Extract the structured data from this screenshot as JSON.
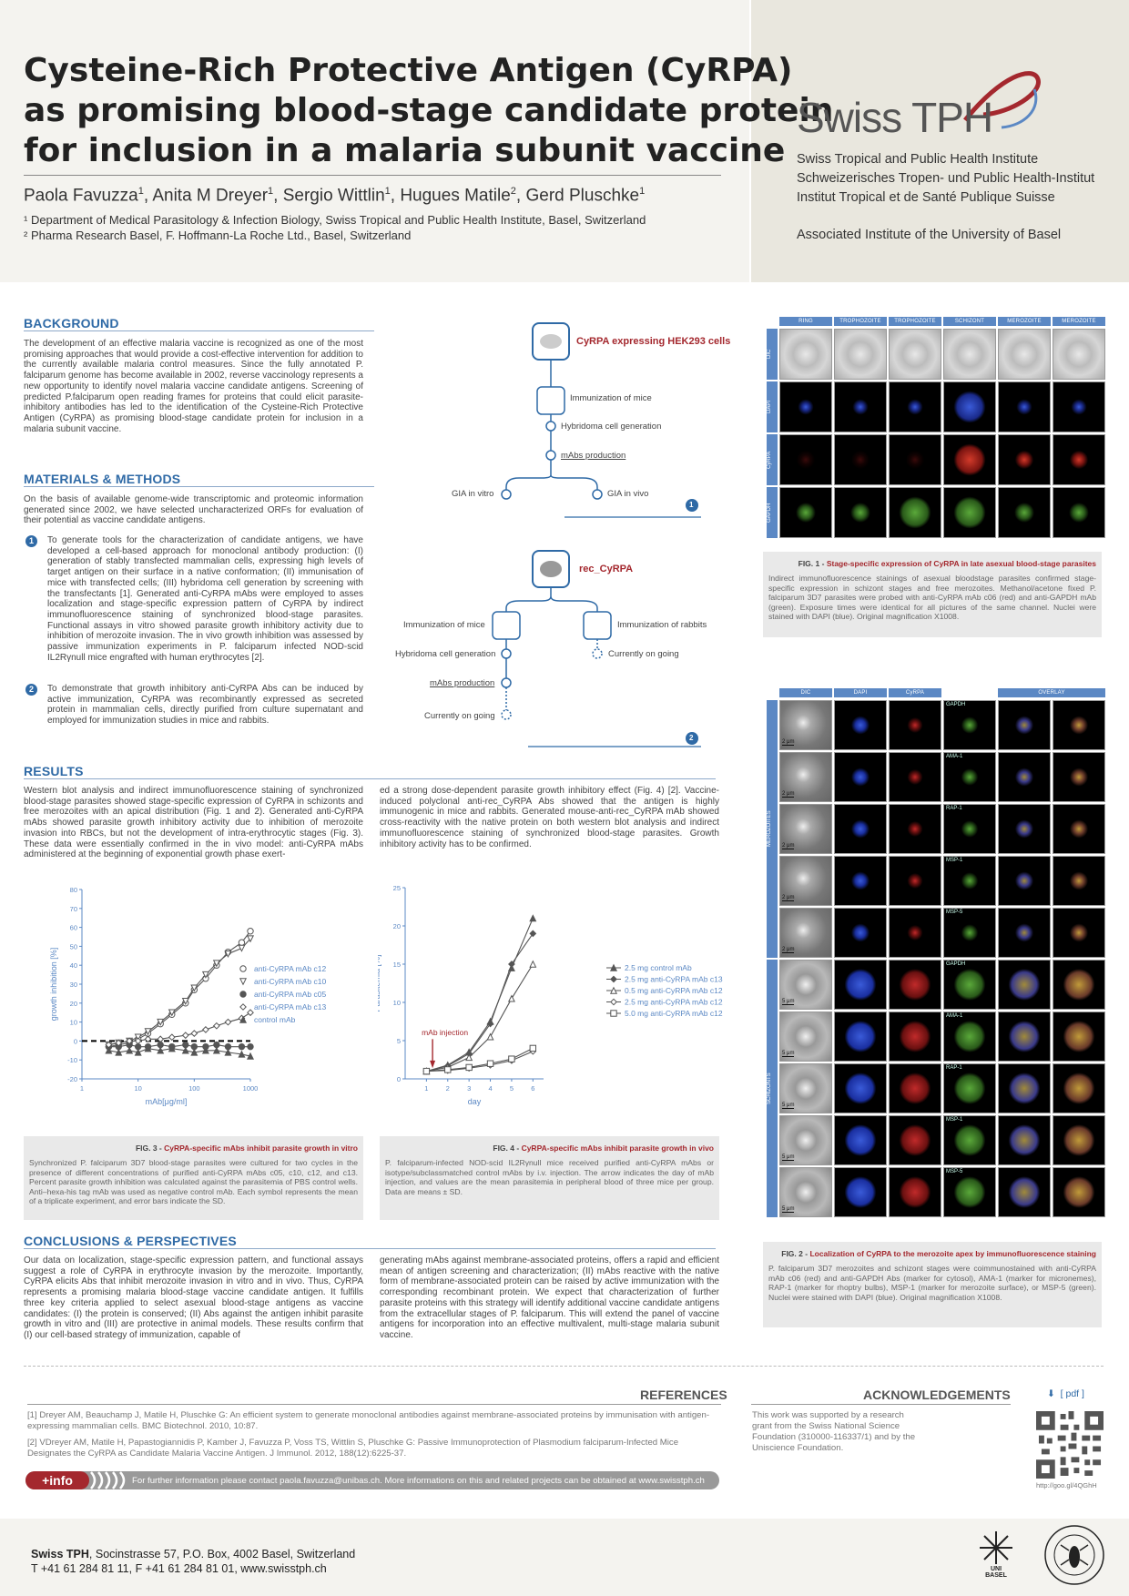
{
  "header": {
    "title_lines": [
      "Cysteine-Rich Protective Antigen (CyRPA)",
      "as promising blood-stage candidate protein",
      "for inclusion in a malaria subunit vaccine"
    ],
    "authors": [
      {
        "name": "Paola Favuzza",
        "aff": "1"
      },
      {
        "name": "Anita M Dreyer",
        "aff": "1"
      },
      {
        "name": "Sergio Wittlin",
        "aff": "1"
      },
      {
        "name": "Hugues Matile",
        "aff": "2"
      },
      {
        "name": "Gerd Pluschke",
        "aff": "1"
      }
    ],
    "affiliations": [
      "¹ Department of Medical Parasitology & Infection Biology, Swiss Tropical and Public Health Institute, Basel, Switzerland",
      "² Pharma Research Basel, F. Hoffmann-La Roche Ltd., Basel, Switzerland"
    ]
  },
  "logo": {
    "name": "Swiss TPH",
    "institute_lines": [
      "Swiss Tropical and Public Health Institute",
      "Schweizerisches Tropen- und Public Health-Institut",
      "Institut Tropical et de Santé Publique Suisse"
    ],
    "associated": "Associated Institute of the University of Basel"
  },
  "background": {
    "heading": "BACKGROUND",
    "text": "The development of an effective malaria vaccine is recognized as one of the most promising approaches that would provide a cost-effective intervention for addition to the currently available malaria control measures. Since the fully annotated P. falciparum genome has become available in 2002, reverse vaccinology represents a new opportunity to identify novel malaria vaccine candidate antigens. Screening of predicted P.falciparum open reading frames for proteins that could elicit parasite-inhibitory antibodies has led to the identification of the Cysteine-Rich Protective Antigen (CyRPA) as promising blood-stage candidate protein for inclusion in a malaria subunit vaccine."
  },
  "methods": {
    "heading": "MATERIALS & METHODS",
    "intro": "On the basis of available genome-wide transcriptomic and proteomic information generated since 2002, we have selected uncharacterized ORFs for evaluation of their potential as vaccine candidate antigens.",
    "item1": "To generate tools for the characterization of candidate antigens, we have developed a cell-based approach for monoclonal antibody production: (I) generation of stably transfected mammalian cells, expressing high levels of target antigen on their surface in a native conformation; (II) immunisation of mice with transfected cells; (III) hybridoma cell generation by screening with the transfectants [1]. Generated anti-CyRPA mAbs were employed to asses localization and stage-specific expression pattern of CyRPA by indirect immunofluorescence staining of synchronized blood-stage parasites. Functional assays in vitro showed parasite growth inhibitory activity due to inhibition of merozoite invasion. The in vivo growth inhibition was assessed by passive immunization experiments in P. falciparum infected NOD-scid IL2Rγnull mice engrafted with human erythrocytes [2].",
    "item2": "To demonstrate that growth inhibitory anti-CyRPA Abs can be induced by active immunization, CyRPA was recombinantly expressed as secreted protein in mammalian cells, directly purified from culture supernatant and employed for immunization studies in mice and rabbits.",
    "n1": "1",
    "n2": "2"
  },
  "flow1": {
    "title": "CyRPA expressing HEK293 cells",
    "steps": [
      "Immunization of mice",
      "Hybridoma cell generation",
      "mAbs production"
    ],
    "left": "GIA in vitro",
    "right": "GIA in vivo",
    "badge": "1"
  },
  "flow2": {
    "title": "rec_CyRPA",
    "left_steps": [
      "Immunization of mice",
      "Hybridoma cell generation",
      "mAbs production",
      "Currently on going"
    ],
    "right_steps": [
      "Immunization of rabbits",
      "Currently on going"
    ],
    "badge": "2"
  },
  "fig1": {
    "columns": [
      "RING",
      "TROPHOZOITE",
      "TROPHOZOITE",
      "SCHIZONT",
      "MEROZOITE",
      "MEROZOITE"
    ],
    "rows": [
      "DIC",
      "DAPI",
      "CyRPA",
      "GAPDH"
    ],
    "caption_label": "FIG. 1 -",
    "caption_title": "Stage-specific expression of CyRPA in late asexual blood-stage parasites",
    "caption": "Indirect immunofluorescence stainings of asexual bloodstage parasites confirmed stage-specific expression in schizont stages and free merozoites. Methanol/acetone fixed P. falciparum 3D7 parasites were probed with anti-CyRPA mAb c06 (red) and anti-GAPDH mAb (green). Exposure times were identical for all pictures of the same channel. Nuclei were stained with DAPI (blue). Original magnification X1008."
  },
  "fig2": {
    "columns": [
      "DIC",
      "DAPI",
      "CyRPA",
      "",
      "OVERLAY"
    ],
    "merozoite_label": "MEROZOITES",
    "schizont_label": "SCHIZONTS",
    "markers": [
      "GAPDH",
      "AMA-1",
      "RAP-1",
      "MSP-1",
      "MSP-5",
      "GAPDH",
      "AMA-1",
      "RAP-1",
      "MSP-1",
      "MSP-5"
    ],
    "scale": [
      "2 μm",
      "2 μm",
      "2 μm",
      "2 μm",
      "2 μm",
      "5 μm",
      "5 μm",
      "5 μm",
      "5 μm",
      "5 μm"
    ],
    "caption_label": "FIG. 2 -",
    "caption_title": "Localization of CyRPA to the merozoite apex by immunofluorescence staining",
    "caption": "P. falciparum 3D7 merozoites and schizont stages were coimmunostained with anti-CyRPA mAb c06 (red) and anti-GAPDH Abs (marker for cytosol), AMA-1 (marker for micronemes), RAP-1 (marker for rhoptry bulbs), MSP-1 (marker for merozoite surface), or MSP-5 (green). Nuclei were stained with DAPI (blue). Original magnification X1008."
  },
  "results": {
    "heading": "RESULTS",
    "col1": "Western blot analysis and indirect immunofluorescence staining of synchronized blood-stage parasites showed stage-specific expression of CyRPA in schizonts and free merozoites with an apical distribution (Fig. 1 and 2). Generated anti-CyRPA mAbs showed parasite growth inhibitory activity due to inhibition of merozoite invasion into RBCs, but not the development of intra-erythrocytic stages (Fig. 3). These data were essentially confirmed in the in vivo model: anti-CyRPA mAbs administered at the beginning of exponential growth phase exert-",
    "col2": "ed a strong dose-dependent parasite growth inhibitory effect (Fig. 4) [2]. Vaccine-induced polyclonal anti-rec_CyRPA Abs showed that the antigen is highly immunogenic in mice and rabbits. Generated mouse-anti-rec_CyRPA mAb showed cross-reactivity with the native protein on both western blot analysis and indirect immunofluorescence staining of synchronized blood-stage parasites. Growth inhibitory activity has to be confirmed."
  },
  "fig3": {
    "caption_label": "FIG. 3 -",
    "caption_title": "CyRPA-specific mAbs inhibit parasite growth in vitro",
    "caption": "Synchronized P. falciparum 3D7 blood-stage parasites were cultured for two cycles in the presence of different concentrations of purified anti-CyRPA mAbs c05, c10, c12, and c13. Percent parasite growth inhibition was calculated against the parasitemia of PBS control wells. Anti–hexa-his tag mAb was used as negative control mAb. Each symbol represents the mean of a triplicate experiment, and error bars indicate the SD."
  },
  "fig4": {
    "caption_label": "FIG. 4 -",
    "caption_title": "CyRPA-specific mAbs inhibit parasite growth in vivo",
    "caption": "P. falciparum-infected NOD-scid IL2Rγnull mice received purified anti-CyRPA mAbs or isotype/subclassmatched control mAbs by i.v. injection. The arrow indicates the day of mAb injection, and values are the mean parasitemia in peripheral blood of three mice per group. Data are means ± SD."
  },
  "chart_data": [
    {
      "type": "line",
      "xlabel": "mAb[μg/ml]",
      "ylabel": "growth inhibition [%]",
      "xscale": "log",
      "xlim": [
        1,
        1000
      ],
      "ylim": [
        -20,
        80
      ],
      "xticks": [
        1,
        10,
        100,
        1000
      ],
      "yticks": [
        -20,
        -10,
        0,
        10,
        20,
        30,
        40,
        50,
        60,
        70,
        80
      ],
      "x": [
        3,
        4.5,
        7,
        10,
        15,
        25,
        40,
        70,
        100,
        160,
        250,
        400,
        700,
        1000
      ],
      "series": [
        {
          "name": "anti-CyRPA mAb c12",
          "marker": "open-circle",
          "values": [
            -3,
            -2,
            -1,
            1,
            4,
            9,
            14,
            20,
            27,
            33,
            40,
            47,
            52,
            58
          ]
        },
        {
          "name": "anti-CyRPA mAb c10",
          "marker": "open-triangle-down",
          "values": [
            -2,
            -1,
            0,
            2,
            5,
            10,
            15,
            21,
            28,
            35,
            41,
            46,
            49,
            54
          ]
        },
        {
          "name": "anti-CyRPA mAb c05",
          "marker": "filled-circle",
          "values": [
            -3,
            -3,
            -2,
            -3,
            -3,
            -2,
            -3,
            -2,
            -3,
            -3,
            -2,
            -3,
            -3,
            -3
          ]
        },
        {
          "name": "anti-CyRPA mAb c13",
          "marker": "open-diamond",
          "values": [
            -2,
            -1,
            0,
            0,
            1,
            1,
            2,
            3,
            4,
            6,
            8,
            10,
            12,
            15
          ]
        },
        {
          "name": "control mAb",
          "marker": "filled-triangle",
          "values": [
            -5,
            -6,
            -5,
            -6,
            -4,
            -5,
            -4,
            -5,
            -6,
            -5,
            -5,
            -6,
            -7,
            -8
          ]
        }
      ]
    },
    {
      "type": "line",
      "xlabel": "day",
      "ylabel": "Parasitemia [%]",
      "xlim": [
        0,
        6.5
      ],
      "ylim": [
        0,
        25
      ],
      "xticks": [
        1,
        2,
        3,
        4,
        5,
        6
      ],
      "yticks": [
        0,
        5,
        10,
        15,
        20,
        25
      ],
      "x": [
        1,
        2,
        3,
        4,
        5,
        6
      ],
      "annotation": "mAb injection",
      "annotation_day": 1.5,
      "series": [
        {
          "name": "2.5 mg control mAb",
          "marker": "filled-triangle",
          "values": [
            1,
            1.8,
            3.5,
            7.5,
            14.5,
            21
          ]
        },
        {
          "name": "2.5 mg anti-CyRPA mAb c13",
          "marker": "filled-diamond",
          "values": [
            1,
            1.7,
            3.3,
            7.2,
            15,
            19
          ]
        },
        {
          "name": "0.5 mg anti-CyRPA mAb c12",
          "marker": "open-triangle",
          "values": [
            1,
            1.5,
            2.8,
            5.5,
            10.5,
            15
          ]
        },
        {
          "name": "2.5 mg anti-CyRPA mAb c12",
          "marker": "open-diamond",
          "values": [
            1,
            1.1,
            1.4,
            1.8,
            2.4,
            3.6
          ]
        },
        {
          "name": "5.0 mg anti-CyRPA mAb c12",
          "marker": "open-square",
          "values": [
            1,
            1.2,
            1.5,
            2.0,
            2.6,
            4.0
          ]
        }
      ]
    }
  ],
  "conclusions": {
    "heading": "CONCLUSIONS & PERSPECTIVES",
    "col1": "Our data on localization, stage-specific expression pattern, and functional assays suggest a role of CyRPA in erythrocyte invasion by the merozoite. Importantly, CyRPA elicits Abs that inhibit merozoite invasion in vitro and in vivo. Thus, CyRPA represents a promising malaria blood-stage vaccine candidate antigen. It fulfills three key criteria applied to select asexual blood-stage antigens as vaccine candidates: (I) the protein is conserved; (II) Abs against the antigen inhibit parasite growth in vitro and (III) are protective in animal models. These results confirm that (I) our cell-based strategy of immunization, capable of",
    "col2": "generating mAbs against membrane-associated proteins, offers a rapid and efficient mean of antigen screening and characterization; (II) mAbs reactive with the native form of membrane-associated protein can be raised by active immunization with the corresponding recombinant protein. We expect that characterization of further parasite proteins with this strategy will identify additional vaccine candidate antigens from the extracellular stages of P. falciparum. This will extend the panel of vaccine antigens for incorporation into an effective multivalent, multi-stage malaria subunit vaccine."
  },
  "references": {
    "heading": "REFERENCES",
    "items": [
      "[1] Dreyer AM, Beauchamp J, Matile H, Pluschke G: An efficient system to generate monoclonal antibodies against membrane-associated proteins by immunisation with antigen-expressing mammalian cells. BMC Biotechnol. 2010, 10:87.",
      "[2] VDreyer AM, Matile H, Papastogiannidis P, Kamber J, Favuzza P, Voss TS, Wittlin S, Pluschke G: Passive Immunoprotection of Plasmodium falciparum-Infected Mice Designates the CyRPA as Candidate Malaria Vaccine Antigen. J Immunol. 2012, 188(12):6225-37."
    ]
  },
  "acknowledgements": {
    "heading": "ACKNOWLEDGEMENTS",
    "text": "This work was supported by a research grant from the Swiss National Science Foundation (310000-116337/1) and by the Uniscience Foundation.",
    "pdf": "[ pdf ]",
    "qr_url": "http://goo.gl/4QGhH"
  },
  "info": {
    "badge": "+info",
    "text": "For further information please contact paola.favuzza@unibas.ch. More informations on this and related projects can be obtained at www.swisstph.ch"
  },
  "footer": {
    "line1_bold": "Swiss TPH",
    "line1": ", Socinstrasse 57, P.O. Box, 4002 Basel, Switzerland",
    "line2": "T +41 61 284 81 11, F +41 61 284 81 01, www.swisstph.ch",
    "uni": "UNI BASEL"
  },
  "colors": {
    "accent": "#2f6aa6",
    "red": "#a4282e",
    "header_bg": "#f4f3ef",
    "logo_bg": "#e9e7de"
  }
}
